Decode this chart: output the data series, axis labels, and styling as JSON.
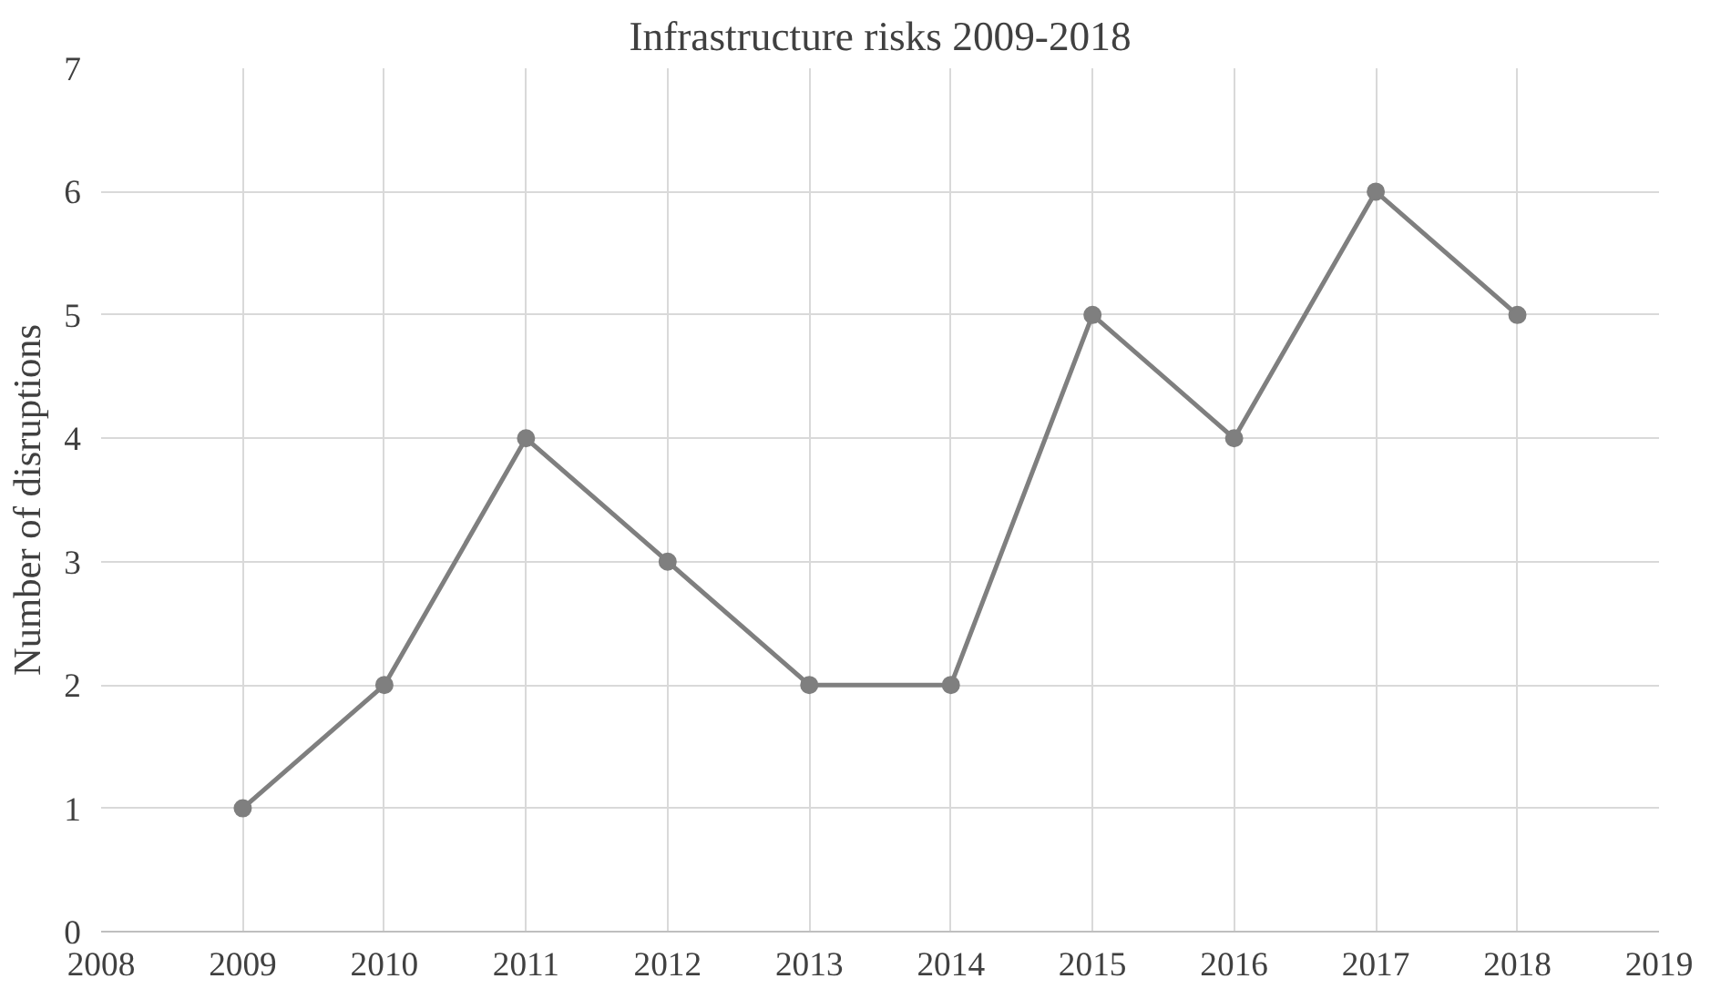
{
  "chart_data": {
    "type": "line",
    "title": "Infrastructure risks 2009-2018",
    "ylabel": "Number of disruptions",
    "x": [
      2009,
      2010,
      2011,
      2012,
      2013,
      2014,
      2015,
      2016,
      2017,
      2018
    ],
    "series": [
      {
        "color": "#7f7f7f",
        "values": [
          1,
          2,
          4,
          3,
          2,
          2,
          5,
          4,
          6,
          5
        ]
      }
    ],
    "xlim": [
      2008,
      2019
    ],
    "xticks": [
      2008,
      2009,
      2010,
      2011,
      2012,
      2013,
      2014,
      2015,
      2016,
      2017,
      2018,
      2019
    ],
    "ylim": [
      0,
      7
    ],
    "yticks": [
      0,
      1,
      2,
      3,
      4,
      5,
      6,
      7
    ],
    "grid": true,
    "marker": "circle",
    "line_style": "solid"
  }
}
